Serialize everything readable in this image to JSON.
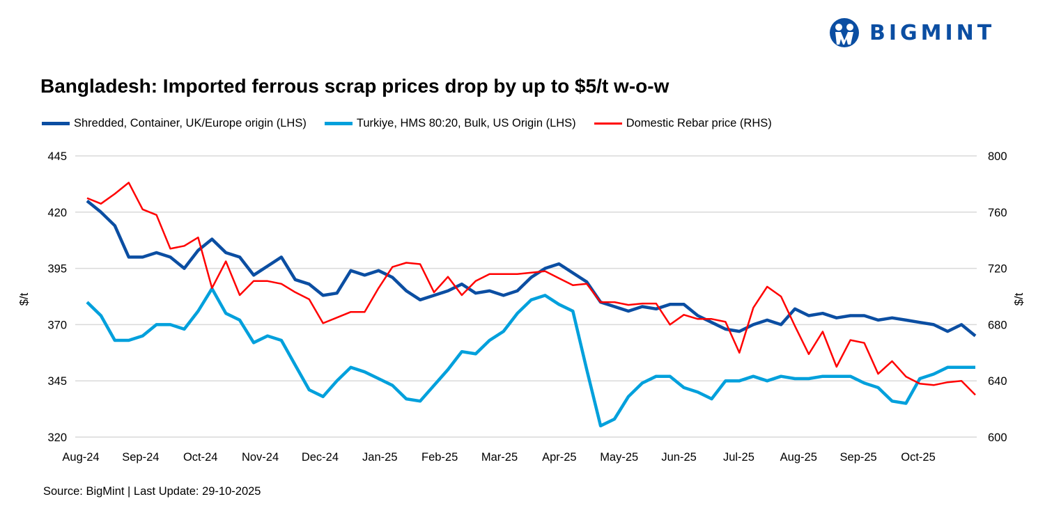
{
  "logo": {
    "text": "BIGMINT",
    "color": "#0b4ea2"
  },
  "title": "Bangladesh: Imported ferrous scrap prices drop by up to $5/t w-o-w",
  "source": "Source: BigMint | Last Update: 29-10-2025",
  "chart_data": {
    "type": "line",
    "title": "Bangladesh: Imported ferrous scrap prices drop by up to $5/t w-o-w",
    "ylabel": "$/t",
    "y2label": "$/t",
    "ylim": [
      320,
      445
    ],
    "yticks": [
      320,
      345,
      370,
      395,
      420,
      445
    ],
    "y2lim": [
      600,
      800
    ],
    "y2ticks": [
      600,
      640,
      680,
      720,
      760,
      800
    ],
    "grid": true,
    "legend": "top",
    "x_tick_labels": [
      "Aug-24",
      "Sep-24",
      "Oct-24",
      "Nov-24",
      "Dec-24",
      "Jan-25",
      "Feb-25",
      "Mar-25",
      "Apr-25",
      "May-25",
      "Jun-25",
      "Jul-25",
      "Aug-25",
      "Sep-25",
      "Oct-25"
    ],
    "series": [
      {
        "name": "Shredded, Container, UK/Europe origin (LHS)",
        "axis": "left",
        "color": "#0b4ea2",
        "values": [
          425,
          420,
          414,
          400,
          400,
          402,
          400,
          395,
          403,
          408,
          402,
          400,
          392,
          396,
          400,
          390,
          388,
          383,
          384,
          394,
          392,
          394,
          391,
          385,
          381,
          383,
          385,
          388,
          384,
          385,
          383,
          385,
          391,
          395,
          397,
          393,
          389,
          380,
          378,
          376,
          378,
          377,
          379,
          379,
          374,
          371,
          368,
          367,
          370,
          372,
          370,
          377,
          374,
          375,
          373,
          374,
          374,
          372,
          373,
          372,
          371,
          370,
          367,
          370,
          365
        ]
      },
      {
        "name": "Turkiye, HMS 80:20, Bulk, US Origin (LHS)",
        "axis": "left",
        "color": "#00a0dc",
        "values": [
          380,
          374,
          363,
          363,
          365,
          370,
          370,
          368,
          376,
          386,
          375,
          372,
          362,
          365,
          363,
          352,
          341,
          338,
          345,
          351,
          349,
          346,
          343,
          337,
          336,
          343,
          350,
          358,
          357,
          363,
          367,
          375,
          381,
          383,
          379,
          376,
          350,
          325,
          328,
          338,
          344,
          347,
          347,
          342,
          340,
          337,
          345,
          345,
          347,
          345,
          347,
          346,
          346,
          347,
          347,
          347,
          344,
          342,
          336,
          335,
          346,
          348,
          351,
          351,
          351
        ]
      },
      {
        "name": "Domestic Rebar price (RHS)",
        "axis": "right",
        "color": "#ff0000",
        "values": [
          770,
          766,
          773,
          781,
          762,
          758,
          734,
          736,
          742,
          706,
          725,
          701,
          711,
          711,
          709,
          703,
          698,
          681,
          685,
          689,
          689,
          706,
          721,
          724,
          723,
          703,
          714,
          701,
          711,
          716,
          716,
          716,
          717,
          718,
          713,
          708,
          709,
          696,
          696,
          694,
          695,
          695,
          680,
          687,
          684,
          684,
          682,
          660,
          692,
          707,
          700,
          679,
          659,
          675,
          650,
          669,
          667,
          645,
          654,
          643,
          638,
          637,
          639,
          640,
          630
        ]
      }
    ]
  }
}
